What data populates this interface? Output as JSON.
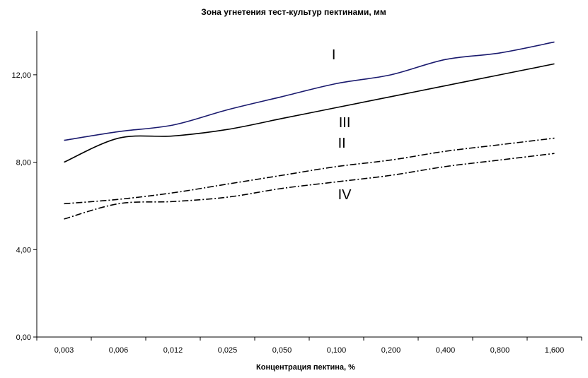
{
  "chart_data": {
    "type": "line",
    "title": "Зона угнетения тест-культур пектинами, мм",
    "xlabel": "Концентрация пектина, %",
    "ylabel": "",
    "categories": [
      "0,003",
      "0,006",
      "0,012",
      "0,025",
      "0,050",
      "0,100",
      "0,200",
      "0,400",
      "0,800",
      "1,600"
    ],
    "ylim": [
      0,
      14
    ],
    "yticks": [
      "0,00",
      "4,00",
      "8,00",
      "12,00"
    ],
    "ytick_values": [
      0,
      4,
      8,
      12
    ],
    "grid": false,
    "legend": "none",
    "series": [
      {
        "name": "I",
        "color": "#1a1a6e",
        "dash": "solid",
        "values": [
          9.0,
          9.4,
          9.7,
          10.4,
          11.0,
          11.6,
          12.0,
          12.7,
          13.0,
          13.5
        ]
      },
      {
        "name": "III",
        "color": "#000000",
        "dash": "solid",
        "values": [
          8.0,
          9.1,
          9.2,
          9.5,
          10.0,
          10.5,
          11.0,
          11.5,
          12.0,
          12.5
        ]
      },
      {
        "name": "II",
        "color": "#000000",
        "dash": "dashdot",
        "values": [
          6.1,
          6.3,
          6.6,
          7.0,
          7.4,
          7.8,
          8.1,
          8.5,
          8.8,
          9.1
        ]
      },
      {
        "name": "IV",
        "color": "#000000",
        "dash": "dashdot",
        "values": [
          5.4,
          6.1,
          6.2,
          6.4,
          6.8,
          7.1,
          7.4,
          7.8,
          8.1,
          8.4
        ]
      }
    ]
  }
}
